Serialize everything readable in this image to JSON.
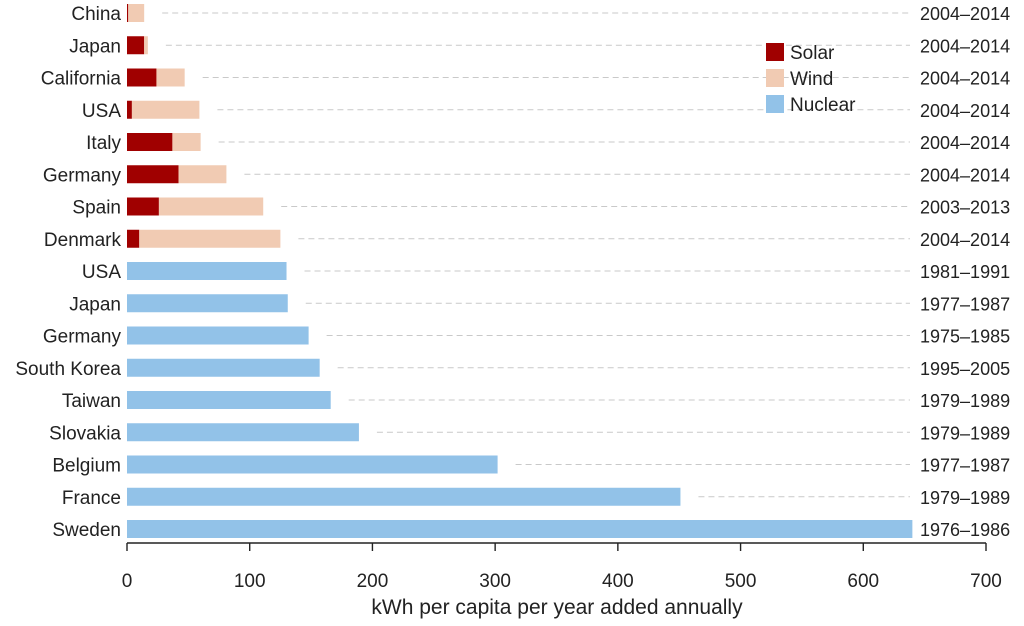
{
  "chart_data": {
    "type": "bar",
    "orientation": "horizontal",
    "stacked": true,
    "xlabel": "kWh per capita per year added annually",
    "xlim": [
      0,
      700
    ],
    "xticks": [
      0,
      100,
      200,
      300,
      400,
      500,
      600,
      700
    ],
    "series": [
      {
        "name": "Solar",
        "color": "#a00000"
      },
      {
        "name": "Wind",
        "color": "#f1cbb3"
      },
      {
        "name": "Nuclear",
        "color": "#92c2e8"
      }
    ],
    "legend_position": "top-right",
    "rows": [
      {
        "country": "China",
        "period": "2004–2014",
        "values": {
          "Solar": 1,
          "Wind": 13
        }
      },
      {
        "country": "Japan",
        "period": "2004–2014",
        "values": {
          "Solar": 14,
          "Wind": 3
        }
      },
      {
        "country": "California",
        "period": "2004–2014",
        "values": {
          "Solar": 24,
          "Wind": 23
        }
      },
      {
        "country": "USA",
        "period": "2004–2014",
        "values": {
          "Solar": 4,
          "Wind": 55
        }
      },
      {
        "country": "Italy",
        "period": "2004–2014",
        "values": {
          "Solar": 37,
          "Wind": 23
        }
      },
      {
        "country": "Germany",
        "period": "2004–2014",
        "values": {
          "Solar": 42,
          "Wind": 39
        }
      },
      {
        "country": "Spain",
        "period": "2003–2013",
        "values": {
          "Solar": 26,
          "Wind": 85
        }
      },
      {
        "country": "Denmark",
        "period": "2004–2014",
        "values": {
          "Solar": 10,
          "Wind": 115
        }
      },
      {
        "country": "USA",
        "period": "1981–1991",
        "values": {
          "Nuclear": 130
        }
      },
      {
        "country": "Japan",
        "period": "1977–1987",
        "values": {
          "Nuclear": 131
        }
      },
      {
        "country": "Germany",
        "period": "1975–1985",
        "values": {
          "Nuclear": 148
        }
      },
      {
        "country": "South Korea",
        "period": "1995–2005",
        "values": {
          "Nuclear": 157
        }
      },
      {
        "country": "Taiwan",
        "period": "1979–1989",
        "values": {
          "Nuclear": 166
        }
      },
      {
        "country": "Slovakia",
        "period": "1979–1989",
        "values": {
          "Nuclear": 189
        }
      },
      {
        "country": "Belgium",
        "period": "1977–1987",
        "values": {
          "Nuclear": 302
        }
      },
      {
        "country": "France",
        "period": "1979–1989",
        "values": {
          "Nuclear": 451
        }
      },
      {
        "country": "Sweden",
        "period": "1976–1986",
        "values": {
          "Nuclear": 640
        }
      }
    ]
  }
}
